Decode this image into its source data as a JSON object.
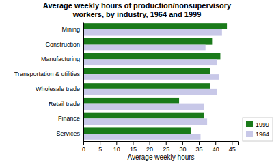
{
  "chart_data": {
    "type": "bar",
    "orientation": "horizontal",
    "title": "Average weekly hours of production/nonsupervisory\nworkers, by industry, 1964 and 1999",
    "categories": [
      "Services",
      "Finance",
      "Retail trade",
      "Wholesale trade",
      "Transportation & utilities",
      "Manufacturing",
      "Construction",
      "Mining"
    ],
    "series": [
      {
        "name": "1999",
        "color": "#1a7a1a",
        "values": [
          32.5,
          36.5,
          29.0,
          38.5,
          38.5,
          41.5,
          39.0,
          43.5
        ]
      },
      {
        "name": "1964",
        "color": "#c8c8e8",
        "values": [
          35.5,
          37.5,
          36.5,
          40.5,
          41.0,
          40.5,
          37.0,
          42.0
        ]
      }
    ],
    "xlabel": "Average weekly hours",
    "xlim": [
      0,
      47
    ],
    "xticks": [
      0,
      5,
      10,
      15,
      20,
      25,
      30,
      35,
      40,
      45
    ],
    "legend": "lower right"
  }
}
